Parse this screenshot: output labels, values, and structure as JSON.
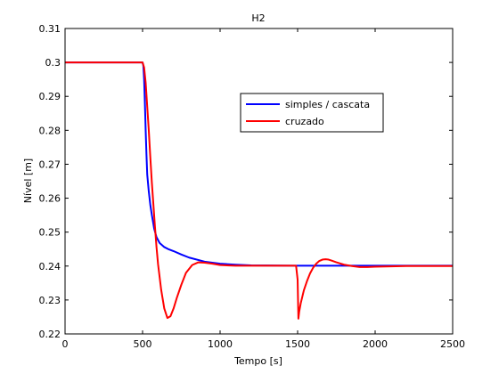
{
  "chart_data": {
    "type": "line",
    "title": "H2",
    "xlabel": "Tempo [s]",
    "ylabel": "Nível [m]",
    "xlim": [
      0,
      2500
    ],
    "ylim": [
      0.22,
      0.31
    ],
    "xticks": [
      0,
      500,
      1000,
      1500,
      2000,
      2500
    ],
    "yticks": [
      0.22,
      0.23,
      0.24,
      0.25,
      0.26,
      0.27,
      0.28,
      0.29,
      0.3,
      0.31
    ],
    "xtick_labels": [
      "0",
      "500",
      "1000",
      "1500",
      "2000",
      "2500"
    ],
    "ytick_labels": [
      "0.22",
      "0.23",
      "0.24",
      "0.25",
      "0.26",
      "0.27",
      "0.28",
      "0.29",
      "0.3",
      "0.31"
    ],
    "grid": false,
    "legend_position": "upper-right-inner",
    "series": [
      {
        "name": "simples / cascata",
        "color": "#0000ff",
        "x": [
          0,
          100,
          200,
          300,
          400,
          480,
          500,
          505,
          510,
          515,
          520,
          525,
          530,
          540,
          550,
          560,
          575,
          590,
          610,
          640,
          670,
          700,
          750,
          800,
          900,
          1000,
          1100,
          1200,
          1500,
          1800,
          2000,
          2200,
          2500
        ],
        "y": [
          0.3,
          0.3,
          0.3,
          0.3,
          0.3,
          0.3,
          0.3,
          0.299,
          0.295,
          0.288,
          0.28,
          0.273,
          0.267,
          0.262,
          0.258,
          0.255,
          0.251,
          0.2485,
          0.2468,
          0.2456,
          0.2449,
          0.2444,
          0.2434,
          0.2425,
          0.2413,
          0.2407,
          0.2404,
          0.2402,
          0.2401,
          0.2401,
          0.2401,
          0.2401,
          0.2401
        ]
      },
      {
        "name": "cruzado",
        "color": "#ff0000",
        "x": [
          0,
          100,
          200,
          300,
          400,
          480,
          500,
          510,
          520,
          530,
          540,
          550,
          560,
          570,
          580,
          590,
          600,
          620,
          640,
          660,
          680,
          700,
          720,
          750,
          780,
          820,
          860,
          900,
          950,
          1000,
          1100,
          1200,
          1300,
          1400,
          1490,
          1500,
          1505,
          1510,
          1520,
          1540,
          1560,
          1580,
          1600,
          1620,
          1640,
          1660,
          1680,
          1700,
          1720,
          1750,
          1800,
          1850,
          1900,
          1950,
          2000,
          2100,
          2200,
          2300,
          2400,
          2500
        ],
        "y": [
          0.3,
          0.3,
          0.3,
          0.3,
          0.3,
          0.3,
          0.3,
          0.2985,
          0.294,
          0.287,
          0.28,
          0.272,
          0.2645,
          0.258,
          0.2515,
          0.2455,
          0.2405,
          0.233,
          0.2275,
          0.2247,
          0.2252,
          0.2275,
          0.2305,
          0.2345,
          0.238,
          0.2403,
          0.2411,
          0.241,
          0.2407,
          0.2403,
          0.2401,
          0.2401,
          0.2401,
          0.2401,
          0.2401,
          0.236,
          0.2245,
          0.2265,
          0.229,
          0.2328,
          0.2355,
          0.2378,
          0.2395,
          0.2407,
          0.2415,
          0.2419,
          0.242,
          0.2419,
          0.2416,
          0.2411,
          0.2404,
          0.24,
          0.2397,
          0.2397,
          0.2398,
          0.2399,
          0.24,
          0.24,
          0.24,
          0.24
        ]
      }
    ]
  }
}
